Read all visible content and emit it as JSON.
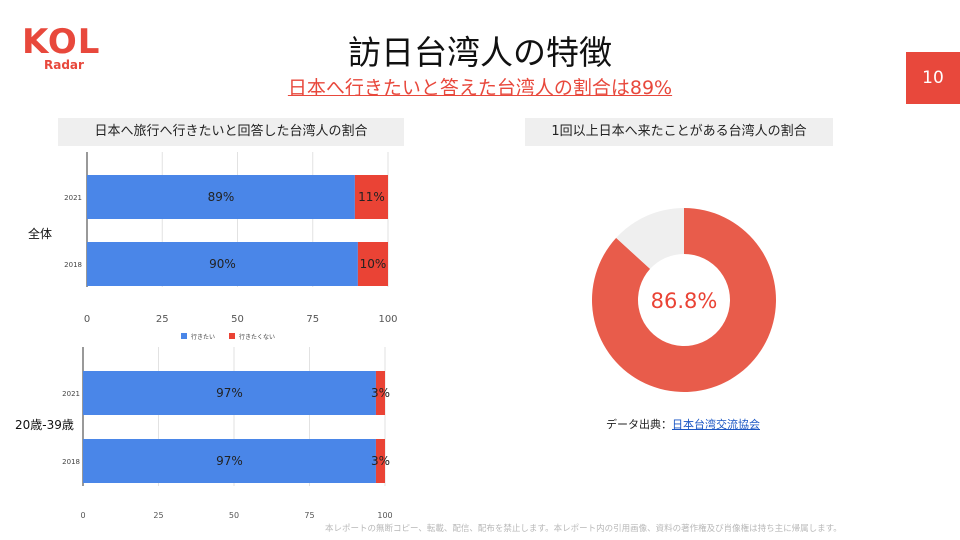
{
  "brand": {
    "logo_main": "KOL",
    "logo_sub": "Radar"
  },
  "title": "訪日台湾人の特徴",
  "subtitle": "日本へ行きたいと答えた台湾人の割合は89%",
  "page_number": "10",
  "left_panel_label": "日本へ旅行へ行きたいと回答した台湾人の割合",
  "right_panel_label": "1回以上日本へ来たことがある台湾人の割合",
  "source": {
    "prefix": "データ出典：",
    "link": "日本台湾交流協会"
  },
  "footer": "本レポートの無断コピー、転載、配信、配布を禁止します。本レポート内の引用画像、資料の著作権及び肖像権は持ち主に帰属します。",
  "colors": {
    "accent": "#e8483c",
    "blue": "#4a86e8",
    "red": "#ea4335",
    "donut_red": "#e85c4b",
    "donut_gray": "#efefef"
  },
  "chart_data": [
    {
      "type": "bar",
      "orientation": "horizontal",
      "stacked": true,
      "group_label": "全体",
      "categories": [
        "2021",
        "2018"
      ],
      "series": [
        {
          "name": "行きたい",
          "values": [
            89,
            90
          ],
          "labels": [
            "89%",
            "90%"
          ]
        },
        {
          "name": "行きたくない",
          "values": [
            11,
            10
          ],
          "labels": [
            "11%",
            "10%"
          ]
        }
      ],
      "xlim": [
        0,
        100
      ],
      "xticks": [
        "0",
        "25",
        "50",
        "75",
        "100"
      ],
      "legend": "bottom"
    },
    {
      "type": "bar",
      "orientation": "horizontal",
      "stacked": true,
      "group_label": "20歳-39歳",
      "categories": [
        "2021",
        "2018"
      ],
      "series": [
        {
          "values": [
            97,
            97
          ],
          "labels": [
            "97%",
            "97%"
          ]
        },
        {
          "values": [
            3,
            3
          ],
          "labels": [
            "3%",
            "3%"
          ]
        }
      ],
      "xlim": [
        0,
        100
      ],
      "xticks": [
        "0",
        "25",
        "50",
        "75",
        "100"
      ]
    },
    {
      "type": "pie",
      "donut": true,
      "values": [
        86.8,
        13.2
      ],
      "center_label": "86.8%"
    }
  ]
}
